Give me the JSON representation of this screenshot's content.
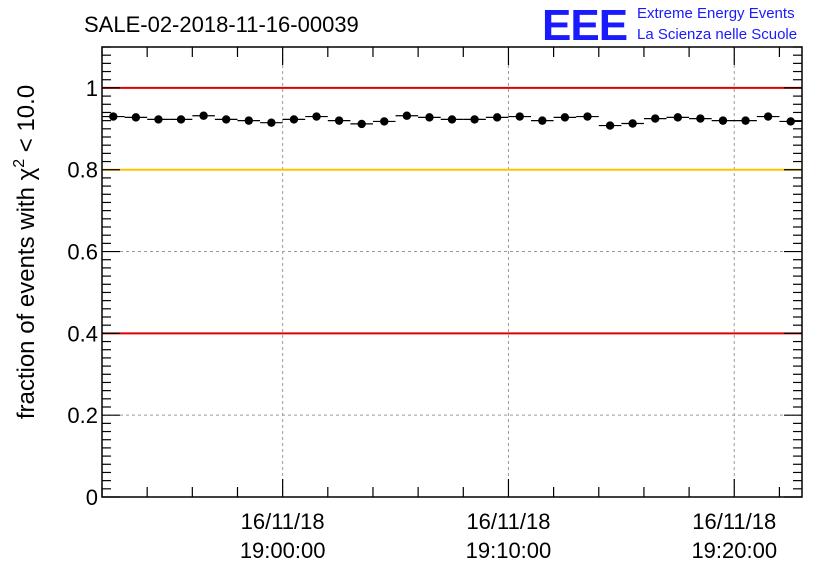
{
  "chart_data": {
    "type": "scatter",
    "title": "SALE-02-2018-11-16-00039",
    "ylabel": "fraction of events with χ² < 10.0",
    "ylabel_parts": {
      "pre": "fraction of events with χ",
      "sup": "2",
      "post": " < 10.0"
    },
    "xlabel": "",
    "ylim": [
      0,
      1.1
    ],
    "y_ticks": [
      {
        "value": 0,
        "label": "0"
      },
      {
        "value": 0.2,
        "label": "0.2"
      },
      {
        "value": 0.4,
        "label": "0.4"
      },
      {
        "value": 0.6,
        "label": "0.6"
      },
      {
        "value": 0.8,
        "label": "0.8"
      },
      {
        "value": 1.0,
        "label": "1"
      }
    ],
    "x_unit": "minutes after 18:51",
    "xlim": [
      0,
      31
    ],
    "x_ticks": [
      {
        "value": 8,
        "date": "16/11/18",
        "time": "19:00:00"
      },
      {
        "value": 18,
        "date": "16/11/18",
        "time": "19:10:00"
      },
      {
        "value": 28,
        "date": "16/11/18",
        "time": "19:20:00"
      }
    ],
    "x_minor_step": 2,
    "bin_width": 1,
    "x": [
      0.5,
      1.5,
      2.5,
      3.5,
      4.5,
      5.5,
      6.5,
      7.5,
      8.5,
      9.5,
      10.5,
      11.5,
      12.5,
      13.5,
      14.5,
      15.5,
      16.5,
      17.5,
      18.5,
      19.5,
      20.5,
      21.5,
      22.5,
      23.5,
      24.5,
      25.5,
      26.5,
      27.5,
      28.5,
      29.5,
      30.5
    ],
    "values": [
      0.93,
      0.928,
      0.923,
      0.923,
      0.932,
      0.923,
      0.92,
      0.915,
      0.923,
      0.93,
      0.92,
      0.912,
      0.918,
      0.932,
      0.928,
      0.923,
      0.923,
      0.928,
      0.93,
      0.92,
      0.928,
      0.93,
      0.908,
      0.913,
      0.925,
      0.928,
      0.925,
      0.92,
      0.92,
      0.93,
      0.918
    ],
    "reference_lines": [
      {
        "value": 1.0,
        "color": "#e00000"
      },
      {
        "value": 0.8,
        "color": "#ffc000"
      },
      {
        "value": 0.4,
        "color": "#e00000"
      }
    ],
    "grid": true
  },
  "logo": {
    "mark": "EEE",
    "line1": "Extreme Energy Events",
    "line2": "La Scienza nelle Scuole",
    "color": "#1a1aff"
  }
}
